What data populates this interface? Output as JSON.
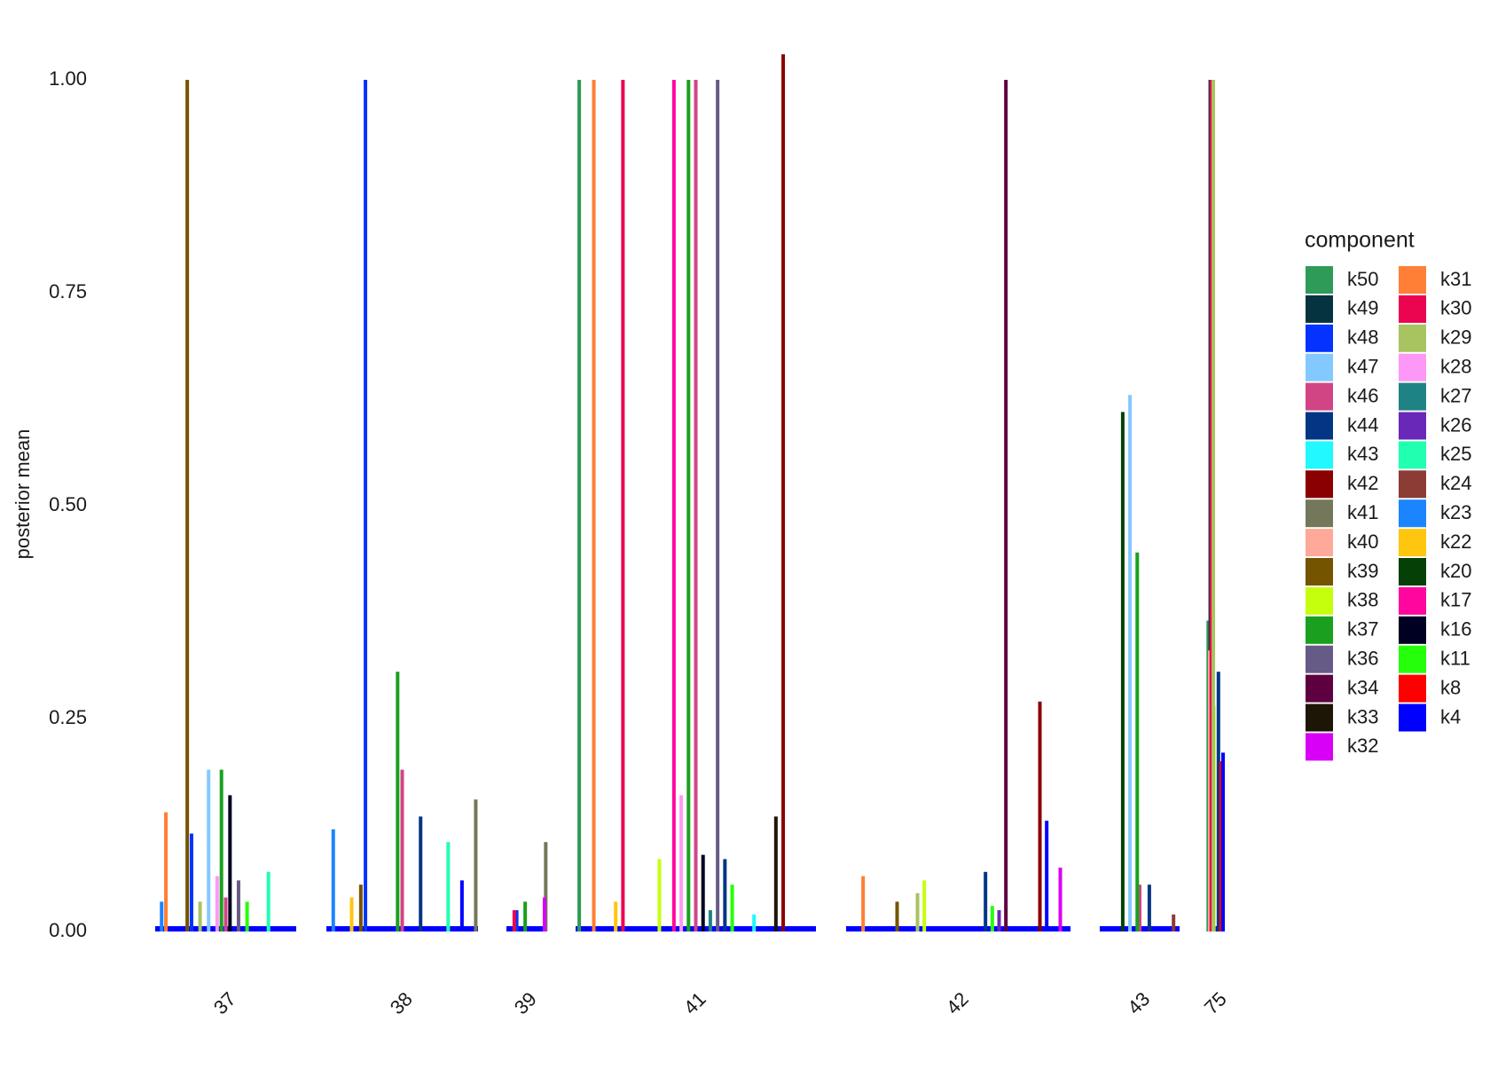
{
  "chart_data": {
    "type": "spike",
    "y_label": "posterior mean",
    "legend_title": "component",
    "categories": [
      "37",
      "38",
      "39",
      "41",
      "42",
      "43",
      "75"
    ],
    "ylim": [
      0,
      1
    ],
    "yticks": [
      {
        "value": 0,
        "label": "0.00"
      },
      {
        "value": 0.25,
        "label": "0.25"
      },
      {
        "value": 0.5,
        "label": "0.50"
      },
      {
        "value": 0.75,
        "label": "0.75"
      },
      {
        "value": 1,
        "label": "1.00"
      }
    ],
    "grid": false,
    "legend_position": "right",
    "series": [
      {
        "name": "k50",
        "color": "#2e9b58",
        "values": [
          null,
          null,
          null,
          1.0,
          null,
          null,
          0.365
        ]
      },
      {
        "name": "k49",
        "color": "#063340",
        "values": [
          null,
          null,
          null,
          null,
          null,
          null,
          1.0
        ]
      },
      {
        "name": "k48",
        "color": "#0433ff",
        "values": [
          0.115,
          1.0,
          0.025,
          null,
          null,
          null,
          0.085
        ]
      },
      {
        "name": "k47",
        "color": "#83c9ff",
        "values": [
          0.19,
          null,
          null,
          null,
          null,
          0.63,
          null
        ]
      },
      {
        "name": "k46",
        "color": "#d14585",
        "values": [
          0.04,
          0.19,
          null,
          1.0,
          null,
          0.055,
          null
        ]
      },
      {
        "name": "k44",
        "color": "#023685",
        "values": [
          null,
          0.135,
          null,
          0.085,
          0.07,
          0.055,
          0.305
        ]
      },
      {
        "name": "k43",
        "color": "#21f8ff",
        "values": [
          null,
          null,
          null,
          0.02,
          null,
          null,
          null
        ]
      },
      {
        "name": "k42",
        "color": "#8a0000",
        "values": [
          null,
          null,
          null,
          1.03,
          0.27,
          null,
          null
        ]
      },
      {
        "name": "k41",
        "color": "#75775a",
        "values": [
          null,
          0.155,
          0.105,
          null,
          null,
          null,
          null
        ]
      },
      {
        "name": "k40",
        "color": "#ffa99a",
        "values": [
          null,
          null,
          null,
          null,
          null,
          null,
          0.33
        ]
      },
      {
        "name": "k39",
        "color": "#755400",
        "values": [
          1.0,
          0.055,
          null,
          null,
          0.035,
          null,
          1.0
        ]
      },
      {
        "name": "k38",
        "color": "#c6ff0e",
        "values": [
          null,
          null,
          null,
          0.085,
          0.06,
          null,
          0.265
        ]
      },
      {
        "name": "k37",
        "color": "#1aa01e",
        "values": [
          0.19,
          0.305,
          0.035,
          1.0,
          null,
          0.445,
          null
        ]
      },
      {
        "name": "k36",
        "color": "#665a87",
        "values": [
          0.06,
          null,
          null,
          1.0,
          null,
          null,
          null
        ]
      },
      {
        "name": "k34",
        "color": "#5e0040",
        "values": [
          null,
          null,
          null,
          null,
          1.0,
          null,
          null
        ]
      },
      {
        "name": "k33",
        "color": "#1d1606",
        "values": [
          null,
          null,
          null,
          0.135,
          null,
          null,
          null
        ]
      },
      {
        "name": "k32",
        "color": "#d800f7",
        "values": [
          null,
          null,
          0.04,
          null,
          0.075,
          null,
          null
        ]
      },
      {
        "name": "k31",
        "color": "#ff7f36",
        "values": [
          0.14,
          null,
          null,
          1.0,
          0.065,
          null,
          null
        ]
      },
      {
        "name": "k30",
        "color": "#eb0550",
        "values": [
          null,
          null,
          0.025,
          1.0,
          null,
          null,
          1.0
        ]
      },
      {
        "name": "k29",
        "color": "#a7c460",
        "values": [
          0.035,
          null,
          null,
          null,
          0.045,
          null,
          1.0
        ]
      },
      {
        "name": "k28",
        "color": "#fe98f6",
        "values": [
          0.065,
          null,
          null,
          0.16,
          null,
          null,
          null
        ]
      },
      {
        "name": "k27",
        "color": "#1f8386",
        "values": [
          null,
          null,
          null,
          0.025,
          null,
          null,
          null
        ]
      },
      {
        "name": "k26",
        "color": "#6a28b8",
        "values": [
          null,
          null,
          null,
          null,
          0.025,
          null,
          null
        ]
      },
      {
        "name": "k25",
        "color": "#21ffb0",
        "values": [
          0.07,
          0.105,
          null,
          null,
          null,
          null,
          null
        ]
      },
      {
        "name": "k24",
        "color": "#8b3c35",
        "values": [
          null,
          null,
          null,
          null,
          null,
          0.02,
          null
        ]
      },
      {
        "name": "k23",
        "color": "#1a85ff",
        "values": [
          0.035,
          0.12,
          null,
          null,
          null,
          null,
          null
        ]
      },
      {
        "name": "k22",
        "color": "#ffc60f",
        "values": [
          null,
          0.04,
          null,
          0.035,
          null,
          null,
          null
        ]
      },
      {
        "name": "k20",
        "color": "#054007",
        "values": [
          null,
          null,
          null,
          null,
          null,
          0.61,
          null
        ]
      },
      {
        "name": "k17",
        "color": "#ff079e",
        "values": [
          null,
          null,
          null,
          1.0,
          null,
          null,
          null
        ]
      },
      {
        "name": "k16",
        "color": "#000022",
        "values": [
          0.16,
          null,
          null,
          0.09,
          null,
          null,
          null
        ]
      },
      {
        "name": "k11",
        "color": "#26ff0b",
        "values": [
          0.035,
          null,
          null,
          0.055,
          0.03,
          null,
          null
        ]
      },
      {
        "name": "k8",
        "color": "#ff0000",
        "values": [
          null,
          null,
          null,
          null,
          null,
          null,
          0.2
        ]
      },
      {
        "name": "k4",
        "color": "#0000ff",
        "values": [
          null,
          0.06,
          null,
          null,
          0.13,
          null,
          0.21
        ]
      }
    ]
  }
}
